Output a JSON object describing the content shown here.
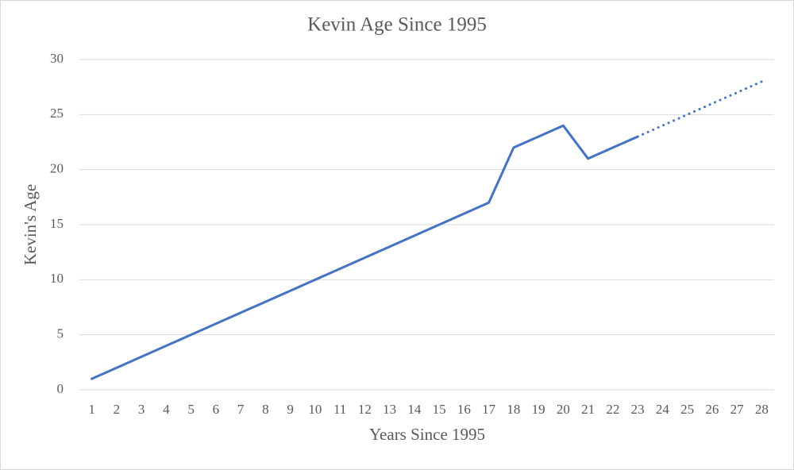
{
  "chart_data": {
    "type": "line",
    "title": "Kevin Age Since 1995",
    "x_label": "Years Since 1995",
    "y_label": "Kevin's Age",
    "categories": [
      1,
      2,
      3,
      4,
      5,
      6,
      7,
      8,
      9,
      10,
      11,
      12,
      13,
      14,
      15,
      16,
      17,
      18,
      19,
      20,
      21,
      22,
      23,
      24,
      25,
      26,
      27,
      28
    ],
    "series": [
      {
        "color": "#4472c4",
        "style": "solid",
        "values": [
          1,
          2,
          3,
          4,
          5,
          6,
          7,
          8,
          9,
          10,
          11,
          12,
          13,
          14,
          15,
          16,
          17,
          22,
          23,
          24,
          21,
          22,
          23,
          null,
          null,
          null,
          null,
          null
        ]
      },
      {
        "color": "#4472c4",
        "style": "dotted",
        "values": [
          null,
          null,
          null,
          null,
          null,
          null,
          null,
          null,
          null,
          null,
          null,
          null,
          null,
          null,
          null,
          null,
          null,
          null,
          null,
          null,
          null,
          null,
          23,
          24,
          25,
          26,
          27,
          28
        ]
      }
    ],
    "ylim": [
      0,
      30
    ],
    "yticks": [
      0,
      5,
      10,
      15,
      20,
      25,
      30
    ],
    "grid": true
  }
}
